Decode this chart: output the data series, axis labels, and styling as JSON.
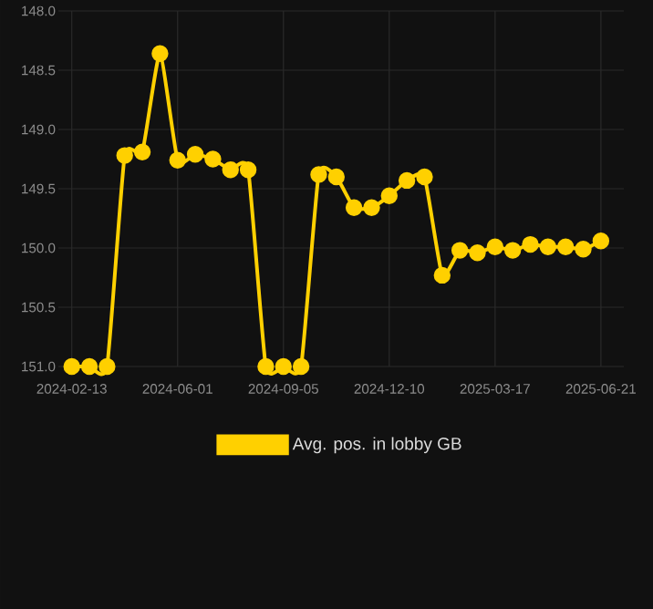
{
  "chart_data": {
    "type": "line",
    "categories": [
      "2024-02-13",
      null,
      null,
      null,
      null,
      null,
      "2024-06-01",
      null,
      null,
      null,
      null,
      null,
      "2024-09-05",
      null,
      null,
      null,
      null,
      null,
      "2024-12-10",
      null,
      null,
      null,
      null,
      null,
      "2025-03-17",
      null,
      null,
      null,
      null,
      null,
      "2025-06-21"
    ],
    "series": [
      {
        "name": "Avg. pos. in lobby GB",
        "color": "#ffd000",
        "values": [
          151.0,
          151.0,
          151.0,
          149.22,
          149.19,
          148.36,
          149.26,
          149.21,
          149.25,
          149.34,
          149.34,
          151.0,
          151.0,
          151.0,
          149.38,
          149.4,
          149.66,
          149.66,
          149.56,
          149.43,
          149.4,
          150.23,
          150.02,
          150.04,
          149.99,
          150.02,
          149.97,
          149.99,
          149.99,
          150.01,
          149.94
        ]
      }
    ],
    "ylim": [
      151,
      148
    ],
    "yticks": [
      {
        "value": 148,
        "label": "148.0"
      },
      148.5,
      {
        "value": 149,
        "label": "149.0"
      },
      149.5,
      {
        "value": 150,
        "label": "150.0"
      },
      150.5,
      {
        "value": 151,
        "label": "151.0"
      }
    ],
    "grid": true,
    "legend": "bottom",
    "marker": "circle",
    "line_style": "solid"
  }
}
